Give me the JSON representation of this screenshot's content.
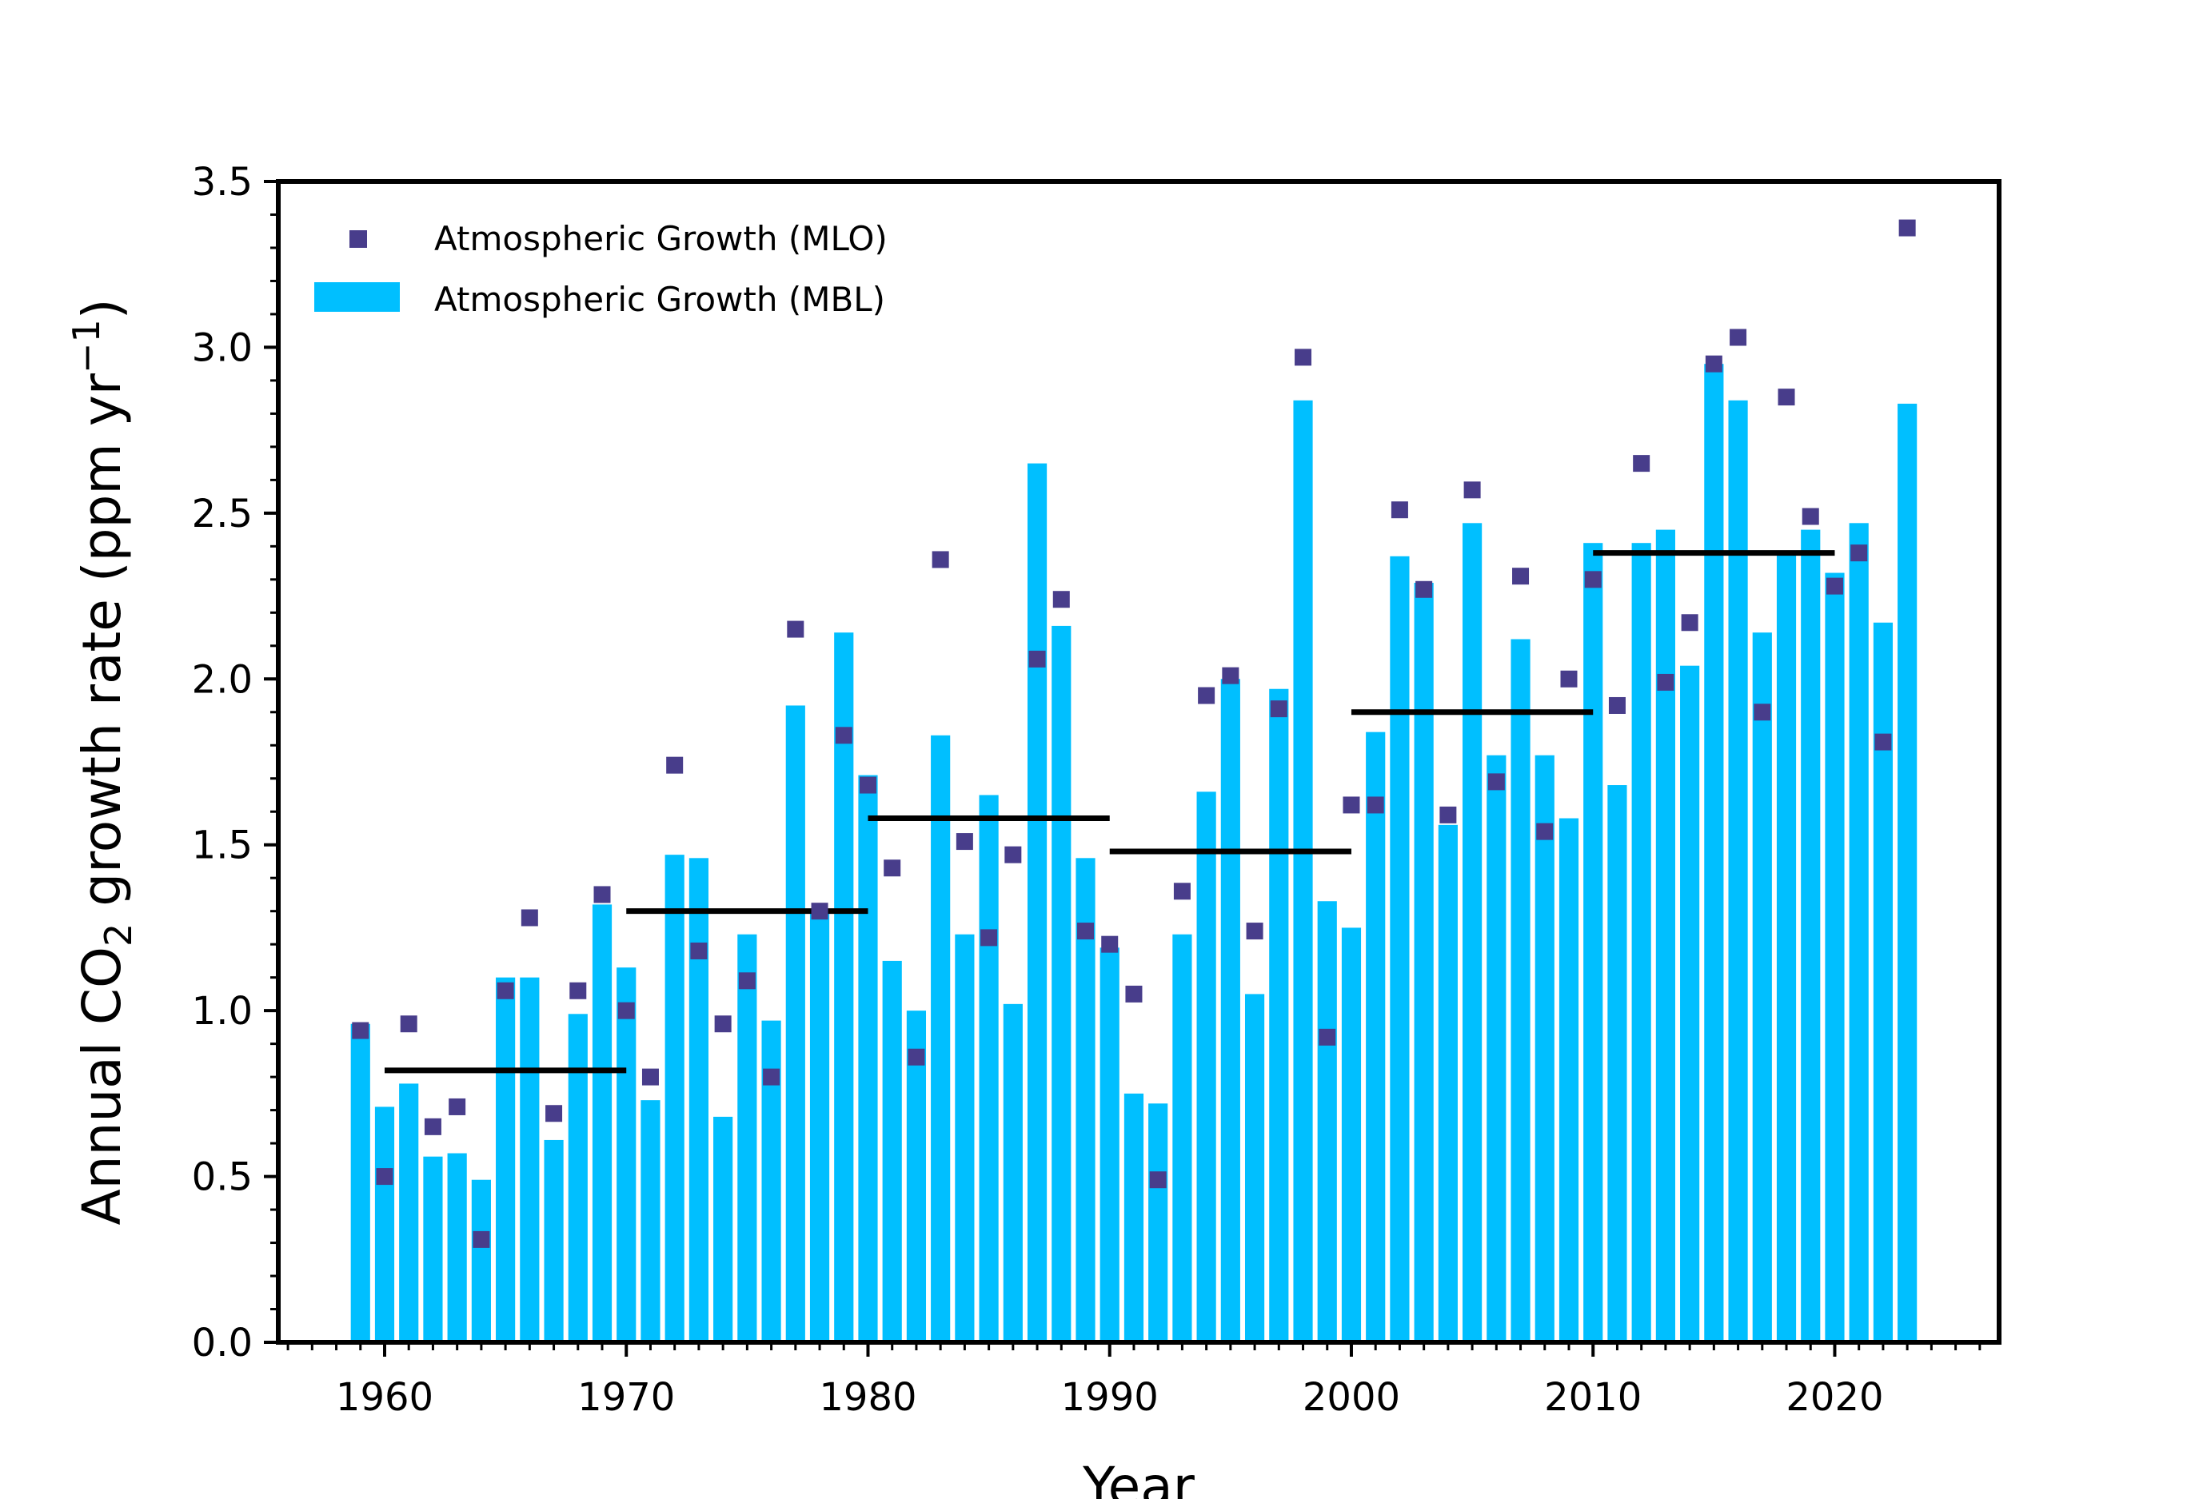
{
  "chart_data": {
    "type": "bar",
    "xlabel": "Year",
    "ylabel": {
      "prefix": "Annual CO",
      "sub": "2",
      "middle": " growth rate (ppm yr",
      "sup": "−1",
      "suffix": ")"
    },
    "xlim": [
      1955.6,
      2026.8
    ],
    "ylim": [
      0,
      3.5
    ],
    "x_ticks": [
      1960,
      1970,
      1980,
      1990,
      2000,
      2010,
      2020
    ],
    "y_ticks": [
      "0.0",
      "0.5",
      "1.0",
      "1.5",
      "2.0",
      "2.5",
      "3.0",
      "3.5"
    ],
    "grid": false,
    "legend_position": "upper-left",
    "colors": {
      "bar": "#00bfff",
      "marker": "#483d8b",
      "decadal_line": "#000000",
      "frame": "#000000"
    },
    "series": [
      {
        "name": "Atmospheric Growth (MLO)",
        "kind": "scatter",
        "x": [
          1959,
          1960,
          1961,
          1962,
          1963,
          1964,
          1965,
          1966,
          1967,
          1968,
          1969,
          1970,
          1971,
          1972,
          1973,
          1974,
          1975,
          1976,
          1977,
          1978,
          1979,
          1980,
          1981,
          1982,
          1983,
          1984,
          1985,
          1986,
          1987,
          1988,
          1989,
          1990,
          1991,
          1992,
          1993,
          1994,
          1995,
          1996,
          1997,
          1998,
          1999,
          2000,
          2001,
          2002,
          2003,
          2004,
          2005,
          2006,
          2007,
          2008,
          2009,
          2010,
          2011,
          2012,
          2013,
          2014,
          2015,
          2016,
          2017,
          2018,
          2019,
          2020,
          2021,
          2022,
          2023
        ],
        "values": [
          0.94,
          0.5,
          0.96,
          0.65,
          0.71,
          0.31,
          1.06,
          1.28,
          0.69,
          1.06,
          1.35,
          1.0,
          0.8,
          1.74,
          1.18,
          0.96,
          1.09,
          0.8,
          2.15,
          1.3,
          1.83,
          1.68,
          1.43,
          0.86,
          2.36,
          1.51,
          1.22,
          1.47,
          2.06,
          2.24,
          1.24,
          1.2,
          1.05,
          0.49,
          1.36,
          1.95,
          2.01,
          1.24,
          1.91,
          2.97,
          0.92,
          1.62,
          1.62,
          2.51,
          2.27,
          1.59,
          2.57,
          1.69,
          2.31,
          1.54,
          2.0,
          2.3,
          1.92,
          2.65,
          1.99,
          2.17,
          2.95,
          3.03,
          1.9,
          2.85,
          2.49,
          2.28,
          2.38,
          1.81,
          3.36
        ]
      },
      {
        "name": "Atmospheric Growth (MBL)",
        "kind": "bar",
        "x": [
          1959,
          1960,
          1961,
          1962,
          1963,
          1964,
          1965,
          1966,
          1967,
          1968,
          1969,
          1970,
          1971,
          1972,
          1973,
          1974,
          1975,
          1976,
          1977,
          1978,
          1979,
          1980,
          1981,
          1982,
          1983,
          1984,
          1985,
          1986,
          1987,
          1988,
          1989,
          1990,
          1991,
          1992,
          1993,
          1994,
          1995,
          1996,
          1997,
          1998,
          1999,
          2000,
          2001,
          2002,
          2003,
          2004,
          2005,
          2006,
          2007,
          2008,
          2009,
          2010,
          2011,
          2012,
          2013,
          2014,
          2015,
          2016,
          2017,
          2018,
          2019,
          2020,
          2021,
          2022,
          2023
        ],
        "values": [
          0.96,
          0.71,
          0.78,
          0.56,
          0.57,
          0.49,
          1.1,
          1.1,
          0.61,
          0.99,
          1.32,
          1.13,
          0.73,
          1.47,
          1.46,
          0.68,
          1.23,
          0.97,
          1.92,
          1.3,
          2.14,
          1.71,
          1.15,
          1.0,
          1.83,
          1.23,
          1.65,
          1.02,
          2.65,
          2.16,
          1.46,
          1.19,
          0.75,
          0.72,
          1.23,
          1.66,
          2.0,
          1.05,
          1.97,
          2.84,
          1.33,
          1.25,
          1.84,
          2.37,
          2.29,
          1.56,
          2.47,
          1.77,
          2.12,
          1.77,
          1.58,
          2.41,
          1.68,
          2.41,
          2.45,
          2.04,
          2.95,
          2.84,
          2.14,
          2.38,
          2.45,
          2.32,
          2.47,
          2.17,
          2.83
        ]
      }
    ],
    "decadal_means": [
      {
        "x0": 1960,
        "x1": 1970,
        "value": 0.82
      },
      {
        "x0": 1970,
        "x1": 1980,
        "value": 1.3
      },
      {
        "x0": 1980,
        "x1": 1990,
        "value": 1.58
      },
      {
        "x0": 1990,
        "x1": 2000,
        "value": 1.48
      },
      {
        "x0": 2000,
        "x1": 2010,
        "value": 1.9
      },
      {
        "x0": 2010,
        "x1": 2020,
        "value": 2.38
      }
    ]
  }
}
